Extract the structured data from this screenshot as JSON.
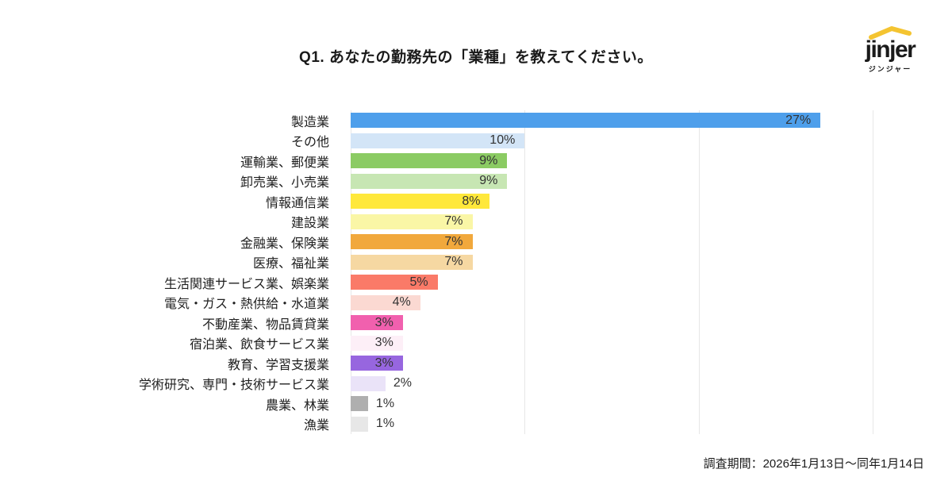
{
  "title": "Q1. あなたの勤務先の「業種」を教えてください。",
  "logo": {
    "brand": "jinjer",
    "subtext": "ジンジャー",
    "accent_color": "#F4C431",
    "text_color": "#1A1A1A"
  },
  "footer": {
    "survey_period": "調査期間：2026年1月13日〜同年1月14日"
  },
  "chart_data": {
    "type": "bar",
    "orientation": "horizontal",
    "title": "Q1. あなたの勤務先の「業種」を教えてください。",
    "categories": [
      "製造業",
      "その他",
      "運輸業、郵便業",
      "卸売業、小売業",
      "情報通信業",
      "建設業",
      "金融業、保険業",
      "医療、福祉業",
      "生活関連サービス業、娯楽業",
      "電気・ガス・熱供給・水道業",
      "不動産業、物品賃貸業",
      "宿泊業、飲食サービス業",
      "教育、学習支援業",
      "学術研究、専門・技術サービス業",
      "農業、林業",
      "漁業"
    ],
    "values": [
      27,
      10,
      9,
      9,
      8,
      7,
      7,
      7,
      5,
      4,
      3,
      3,
      3,
      2,
      1,
      1
    ],
    "value_labels": [
      "27%",
      "10%",
      "9%",
      "9%",
      "8%",
      "7%",
      "7%",
      "7%",
      "5%",
      "4%",
      "3%",
      "3%",
      "3%",
      "2%",
      "1%",
      "1%"
    ],
    "bar_colors": [
      "#4E9FEB",
      "#D3E5F7",
      "#8BCB63",
      "#C7E6B3",
      "#FFE83B",
      "#FAF6A6",
      "#F1A83C",
      "#F6D8A2",
      "#FA7A68",
      "#FBD9D2",
      "#F160AE",
      "#FDEFF7",
      "#9766DF",
      "#EAE3F8",
      "#AFAFAF",
      "#E7E7E7"
    ],
    "xlim": [
      0,
      30
    ],
    "gridline_values": [
      0,
      10,
      20,
      30
    ],
    "grid_color": "#E7E7E7",
    "grid_on": true,
    "xlabel": "",
    "ylabel": "",
    "legend": "none",
    "value_label_color": "#333333",
    "inside_label_min_value": 3
  }
}
